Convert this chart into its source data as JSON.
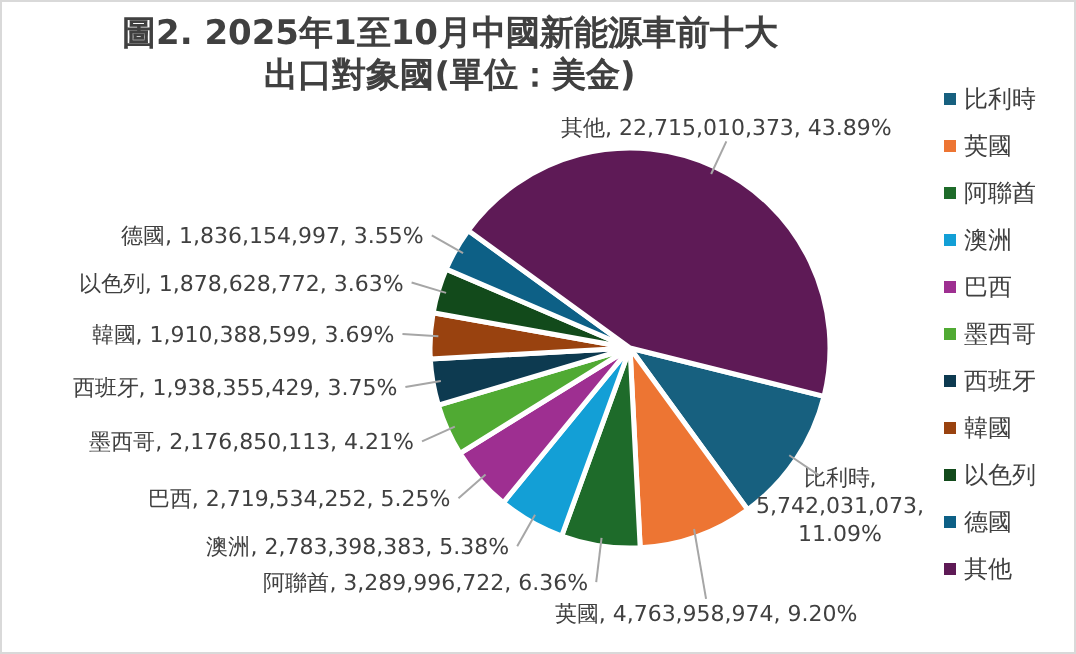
{
  "chart_data": {
    "type": "pie",
    "title": "圖2. 2025年1至10月中國新能源車前十大出口對象國(單位：美金)",
    "legend": "right",
    "categories": [
      "比利時",
      "英國",
      "阿聯酋",
      "澳洲",
      "巴西",
      "墨西哥",
      "西班牙",
      "韓國",
      "以色列",
      "德國",
      "其他"
    ],
    "values": [
      5742031073,
      4763958974,
      3289996722,
      2783398383,
      2719534252,
      2176850113,
      1938355429,
      1910388599,
      1878628772,
      1836154997,
      22715010373
    ],
    "value_labels": [
      "比利時, 5,742,031,073, 11.09%",
      "英國, 4,763,958,974, 9.20%",
      "阿聯酋, 3,289,996,722, 6.36%",
      "澳洲, 2,783,398,383, 5.38%",
      "巴西, 2,719,534,252, 5.25%",
      "墨西哥, 2,176,850,113, 4.21%",
      "西班牙, 1,938,355,429, 3.75%",
      "韓國, 1,910,388,599, 3.69%",
      "以色列, 1,878,628,772, 3.63%",
      "德國, 1,836,154,997, 3.55%",
      "其他, 22,715,010,373, 43.89%"
    ],
    "colors": [
      "#17607f",
      "#ed7533",
      "#1e6b2a",
      "#139fd6",
      "#9e2f91",
      "#50aa33",
      "#0d3a50",
      "#99420f",
      "#124a1b",
      "#0d6086",
      "#5e1a56"
    ]
  }
}
